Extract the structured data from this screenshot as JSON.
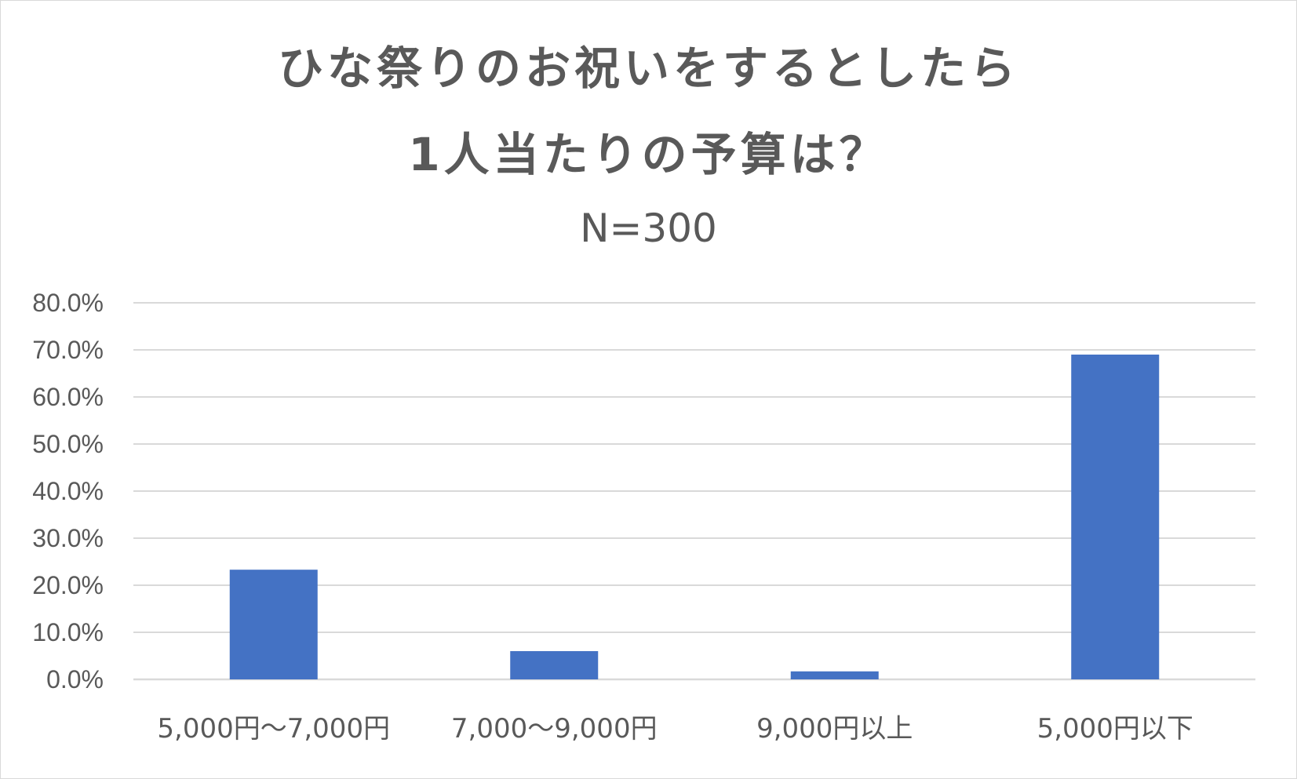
{
  "chart_data": {
    "type": "bar",
    "title_lines": [
      "ひな祭りのお祝いをするとしたら",
      "1人当たりの予算は？"
    ],
    "subtitle": "N=300",
    "categories": [
      "5,000円～7,000円",
      "7,000～9,000円",
      "9,000円以上",
      "5,000円以下"
    ],
    "values": [
      23.3,
      6.0,
      1.7,
      69.0
    ],
    "y_tick_labels": [
      "0.0%",
      "10.0%",
      "20.0%",
      "30.0%",
      "40.0%",
      "50.0%",
      "60.0%",
      "70.0%",
      "80.0%"
    ],
    "ylim": [
      0,
      80
    ],
    "y_tick_step": 10,
    "grid": true,
    "legend": "none",
    "bar_color": "#4472c4",
    "grid_color": "#d9d9d9"
  }
}
